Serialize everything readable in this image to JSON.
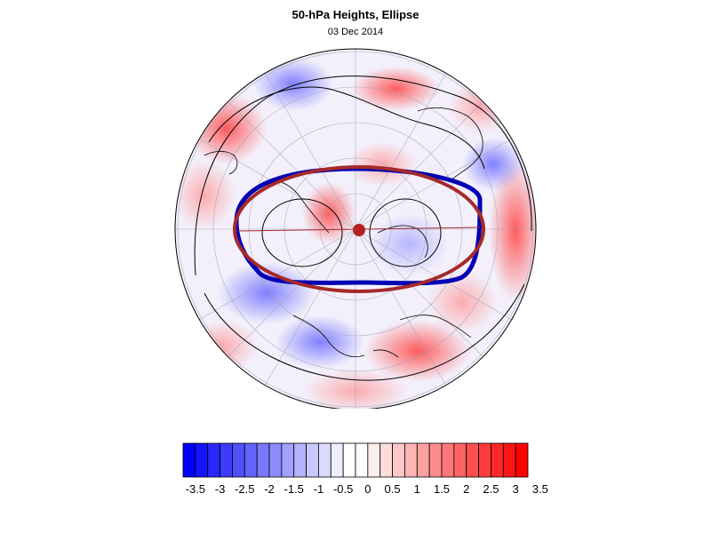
{
  "title": "50-hPa Heights, Ellipse",
  "subtitle": "03 Dec 2014",
  "colorbar": {
    "labels": [
      "-3.5",
      "-3",
      "-2.5",
      "-2",
      "-1.5",
      "-1",
      "-0.5",
      "0",
      "0.5",
      "1",
      "1.5",
      "2",
      "2.5",
      "3",
      "3.5"
    ],
    "colors": [
      "#0000ff",
      "#1414ff",
      "#2828ff",
      "#3c3cff",
      "#5050ff",
      "#6464ff",
      "#7878ff",
      "#8c8cff",
      "#a0a0ff",
      "#b4b4ff",
      "#c8c8ff",
      "#dcdcff",
      "#eeeeff",
      "#ffffff",
      "#ffffff",
      "#ffeeee",
      "#ffdcdc",
      "#ffc8c8",
      "#ffb4b4",
      "#ffa0a0",
      "#ff8c8c",
      "#ff7878",
      "#ff6464",
      "#ff5050",
      "#ff3c3c",
      "#ff2828",
      "#ff1414",
      "#ff0000"
    ]
  },
  "map_colors": {
    "red_ellipse": "#a52a2a",
    "blue_contour": "#0000b4",
    "pole_marker": "#b22222"
  }
}
